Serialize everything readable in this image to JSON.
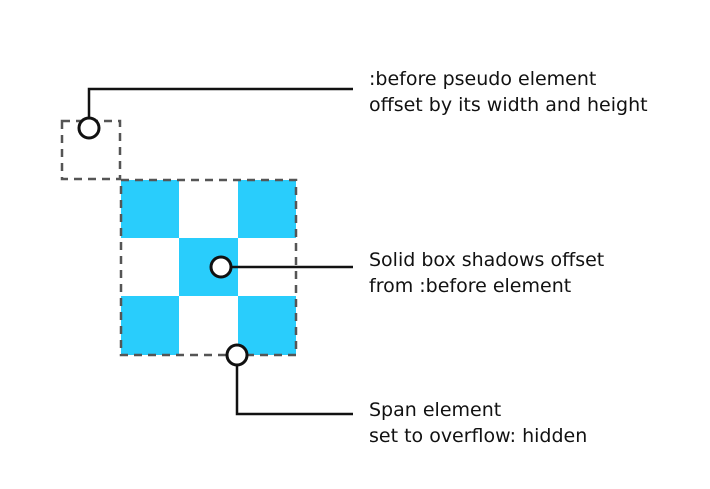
{
  "colors": {
    "background": "#ffffff",
    "checker_fill": "#29cdfc",
    "dashed_outline": "#555555",
    "leader_line": "#111111",
    "text": "#111111"
  },
  "annotations": {
    "before_pseudo": {
      "line1": ":before pseudo element",
      "line2": "offset by its width and height"
    },
    "box_shadows": {
      "line1": "Solid box shadows offset",
      "line2": "from :before element"
    },
    "span_element": {
      "line1": "Span element",
      "line2": "set to overflow: hidden"
    }
  },
  "checkerboard": {
    "rows": 3,
    "columns": 3,
    "filled_cells": [
      [
        0,
        0
      ],
      [
        0,
        2
      ],
      [
        1,
        1
      ],
      [
        2,
        0
      ],
      [
        2,
        2
      ]
    ]
  }
}
